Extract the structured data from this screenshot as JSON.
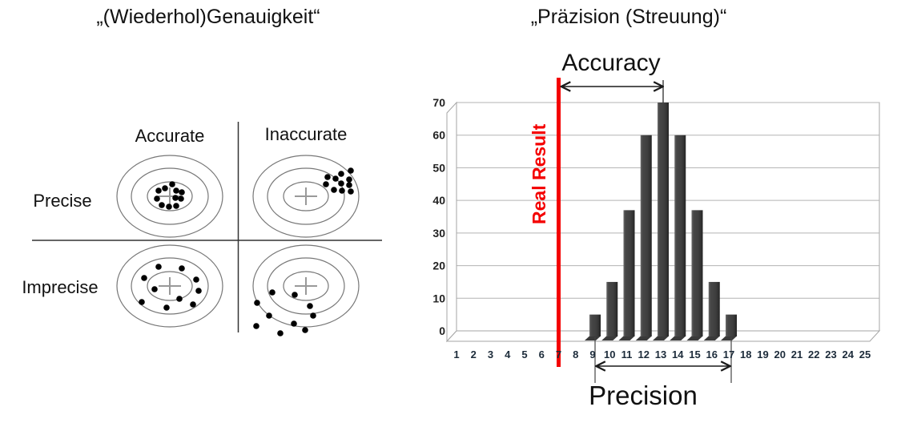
{
  "left_panel": {
    "title": "„(Wiederhol)Genauigkeit“",
    "col_headers": [
      "Accurate",
      "Inaccurate"
    ],
    "row_headers": [
      "Precise",
      "Imprecise"
    ],
    "quadrants": [
      {
        "name": "precise-accurate",
        "dots": [
          [
            -14,
            -7
          ],
          [
            -6,
            -10
          ],
          [
            3,
            -15
          ],
          [
            8,
            -7
          ],
          [
            15,
            -5
          ],
          [
            -16,
            3
          ],
          [
            7,
            2
          ],
          [
            14,
            3
          ],
          [
            -10,
            11
          ],
          [
            -1,
            13
          ],
          [
            8,
            12
          ]
        ]
      },
      {
        "name": "precise-inaccurate",
        "dots": [
          [
            44,
            -28
          ],
          [
            56,
            -32
          ],
          [
            27,
            -24
          ],
          [
            37,
            -22
          ],
          [
            54,
            -21
          ],
          [
            25,
            -15
          ],
          [
            44,
            -16
          ],
          [
            54,
            -14
          ],
          [
            35,
            -8
          ],
          [
            45,
            -7
          ],
          [
            56,
            -6
          ]
        ]
      },
      {
        "name": "imprecise-accurate",
        "dots": [
          [
            -14,
            -24
          ],
          [
            15,
            -22
          ],
          [
            -32,
            -10
          ],
          [
            33,
            -8
          ],
          [
            -19,
            4
          ],
          [
            36,
            6
          ],
          [
            -35,
            20
          ],
          [
            12,
            16
          ],
          [
            -4,
            27
          ],
          [
            29,
            23
          ]
        ]
      },
      {
        "name": "imprecise-inaccurate",
        "dots": [
          [
            -42,
            8
          ],
          [
            -14,
            11
          ],
          [
            5,
            25
          ],
          [
            -61,
            21
          ],
          [
            -46,
            37
          ],
          [
            9,
            37
          ],
          [
            -15,
            47
          ],
          [
            -62,
            50
          ],
          [
            -1,
            55
          ],
          [
            -32,
            59
          ]
        ]
      }
    ]
  },
  "right_panel": {
    "title": "„Präzision (Streuung)“"
  },
  "chart_data": {
    "type": "bar",
    "title": "„Präzision (Streuung)“",
    "xlabel": "",
    "ylabel": "",
    "categories": [
      1,
      2,
      3,
      4,
      5,
      6,
      7,
      8,
      9,
      10,
      11,
      12,
      13,
      14,
      15,
      16,
      17,
      18,
      19,
      20,
      21,
      22,
      23,
      24,
      25
    ],
    "values": [
      0,
      0,
      0,
      0,
      0,
      0,
      0,
      0,
      5,
      15,
      37,
      60,
      70,
      60,
      37,
      15,
      5,
      0,
      0,
      0,
      0,
      0,
      0,
      0,
      0
    ],
    "ylim": [
      0,
      70
    ],
    "y_ticks": [
      0,
      10,
      20,
      30,
      40,
      50,
      60,
      70
    ],
    "grid": "horizontal",
    "legend": "none",
    "bar_color": "#3f3f3f",
    "real_result": {
      "label": "Real Result",
      "x": 7,
      "color": "#f40000"
    },
    "annotations": {
      "accuracy": {
        "label": "Accuracy",
        "from_x": 7,
        "to_x": 13
      },
      "precision": {
        "label": "Precision",
        "from_x": 9,
        "to_x": 17
      }
    }
  }
}
